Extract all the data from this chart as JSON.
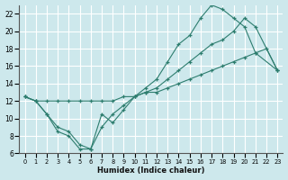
{
  "xlabel": "Humidex (Indice chaleur)",
  "bg_color": "#cde8ec",
  "line_color": "#2d7d6e",
  "grid_color": "#ffffff",
  "xlim": [
    -0.5,
    23.5
  ],
  "ylim": [
    6,
    23
  ],
  "xticks": [
    0,
    1,
    2,
    3,
    4,
    5,
    6,
    7,
    8,
    9,
    10,
    11,
    12,
    13,
    14,
    15,
    16,
    17,
    18,
    19,
    20,
    21,
    22,
    23
  ],
  "yticks": [
    6,
    8,
    10,
    12,
    14,
    16,
    18,
    20,
    22
  ],
  "s1_x": [
    0,
    1,
    2,
    3,
    4,
    5,
    6,
    7,
    8,
    9,
    10,
    11,
    12,
    13,
    14,
    15,
    16,
    17,
    18,
    19,
    20,
    21,
    23
  ],
  "s1_y": [
    12.5,
    12.0,
    10.5,
    9.0,
    8.5,
    7.0,
    6.5,
    10.5,
    9.5,
    11.0,
    12.5,
    13.5,
    14.5,
    16.5,
    18.5,
    19.5,
    21.5,
    23.0,
    22.5,
    21.5,
    20.5,
    17.5,
    15.5
  ],
  "s2_x": [
    0,
    1,
    2,
    3,
    4,
    5,
    6,
    7,
    8,
    9,
    10,
    11,
    12,
    13,
    14,
    15,
    16,
    17,
    18,
    19,
    20,
    21,
    23
  ],
  "s2_y": [
    12.5,
    12.0,
    10.5,
    8.5,
    8.0,
    6.5,
    6.5,
    9.0,
    10.5,
    11.5,
    12.5,
    13.0,
    13.5,
    14.5,
    15.5,
    16.5,
    17.5,
    18.5,
    19.0,
    20.0,
    21.5,
    20.5,
    15.5
  ],
  "s3_x": [
    0,
    1,
    2,
    3,
    4,
    5,
    6,
    7,
    8,
    9,
    10,
    11,
    12,
    13,
    14,
    15,
    16,
    17,
    18,
    19,
    20,
    21,
    22,
    23
  ],
  "s3_y": [
    12.5,
    12.0,
    12.0,
    12.0,
    12.0,
    12.0,
    12.0,
    12.0,
    12.0,
    12.5,
    12.5,
    13.0,
    13.0,
    13.5,
    14.0,
    14.5,
    15.0,
    15.5,
    16.0,
    16.5,
    17.0,
    17.5,
    18.0,
    15.5
  ]
}
